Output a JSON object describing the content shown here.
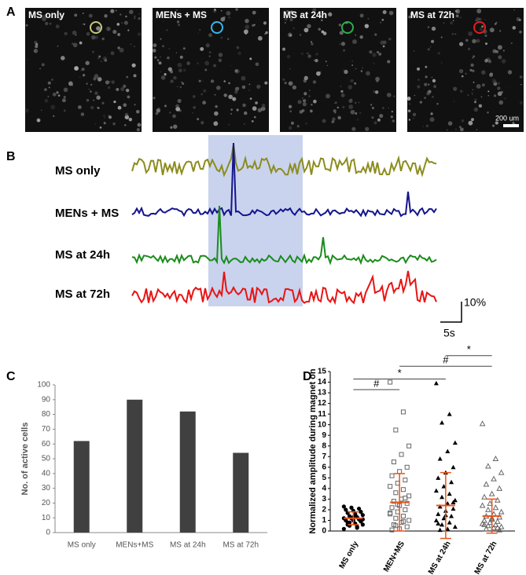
{
  "panels": {
    "a": "A",
    "b": "B",
    "c": "C",
    "d": "D"
  },
  "images": {
    "labels": [
      "MS only",
      "MENs + MS",
      "MS at 24h",
      "MS at 72h"
    ],
    "circle_colors": [
      "#c8c87a",
      "#3ab6e8",
      "#2fae4a",
      "#e02020"
    ],
    "scale_bar": "200 um"
  },
  "traces": {
    "labels": [
      "MS only",
      "MENs + MS",
      "MS at 24h",
      "MS at 72h"
    ],
    "colors": [
      "#8c8c1e",
      "#14148c",
      "#1a8c1a",
      "#e81414"
    ],
    "scale_y": "10%",
    "scale_x": "5s"
  },
  "chart_data": [
    {
      "type": "bar",
      "y_label": "No. of active cells",
      "categories": [
        "MS only",
        "MENs+MS",
        "MS at 24h",
        "MS at 72h"
      ],
      "values": [
        62,
        90,
        82,
        54
      ],
      "color": "#404040",
      "ylim": [
        0,
        100
      ],
      "yticks": [
        0,
        10,
        20,
        30,
        40,
        50,
        60,
        70,
        80,
        90,
        100
      ]
    },
    {
      "type": "strip",
      "y_label": "Normalized amplitude during magnet on",
      "categories": [
        "MS only",
        "MEN+MS",
        "MS at 24h",
        "MS at 72h"
      ],
      "ylim": [
        0,
        15
      ],
      "yticks": [
        0,
        1,
        2,
        3,
        4,
        5,
        6,
        7,
        8,
        9,
        10,
        11,
        12,
        13,
        14,
        15
      ],
      "error_color": "#e8541c",
      "series": [
        {
          "name": "MS only",
          "marker": "circle-filled",
          "mean": 1.2,
          "sd": 0.6,
          "values": [
            0.2,
            0.4,
            0.5,
            0.6,
            0.7,
            0.8,
            0.9,
            1.0,
            1.0,
            1.1,
            1.2,
            1.2,
            1.3,
            1.4,
            1.5,
            1.6,
            1.7,
            1.8,
            1.9,
            2.0,
            2.1,
            2.2,
            2.3,
            0.3,
            0.8,
            1.1,
            1.5,
            0.6,
            0.9,
            1.3
          ]
        },
        {
          "name": "MEN+MS",
          "marker": "square-open",
          "mean": 2.7,
          "sd": 2.7,
          "values": [
            14.0,
            11.2,
            9.5,
            8.0,
            7.2,
            6.5,
            6.0,
            5.6,
            5.2,
            4.8,
            4.5,
            4.2,
            3.9,
            3.6,
            3.3,
            3.0,
            2.8,
            2.6,
            2.4,
            2.2,
            2.0,
            1.8,
            1.6,
            1.4,
            1.2,
            1.0,
            0.8,
            0.6,
            0.4,
            0.2,
            0.1,
            3.1,
            2.5,
            1.7,
            0.9,
            0.5
          ]
        },
        {
          "name": "MS at 24h",
          "marker": "triangle-filled",
          "mean": 2.4,
          "sd": 3.1,
          "values": [
            13.9,
            11.0,
            10.2,
            8.3,
            7.5,
            6.8,
            6.0,
            5.5,
            5.0,
            4.6,
            4.2,
            3.8,
            3.5,
            3.2,
            2.9,
            2.6,
            2.3,
            2.1,
            1.9,
            1.6,
            1.4,
            1.2,
            1.0,
            0.8,
            0.6,
            0.4,
            0.2,
            0.1,
            2.7,
            1.5,
            0.7
          ]
        },
        {
          "name": "MS at 72h",
          "marker": "triangle-open",
          "mean": 1.4,
          "sd": 1.6,
          "values": [
            10.1,
            6.8,
            6.1,
            5.5,
            4.9,
            4.4,
            4.0,
            3.5,
            3.2,
            2.9,
            2.6,
            2.4,
            2.2,
            2.0,
            1.8,
            1.6,
            1.4,
            1.3,
            1.2,
            1.0,
            0.9,
            0.8,
            0.7,
            0.6,
            0.5,
            0.4,
            0.3,
            0.2,
            0.1,
            1.1,
            0.6,
            0.3
          ]
        }
      ],
      "annotations": [
        {
          "label": "#",
          "from": 0,
          "to": 1,
          "y": 13.3
        },
        {
          "label": "*",
          "from": 0,
          "to": 2,
          "y": 14.3
        },
        {
          "label": "#",
          "from": 1,
          "to": 3,
          "y": 15.5
        },
        {
          "label": "*",
          "from": 2,
          "to": 3,
          "y": 16.5
        }
      ]
    }
  ]
}
